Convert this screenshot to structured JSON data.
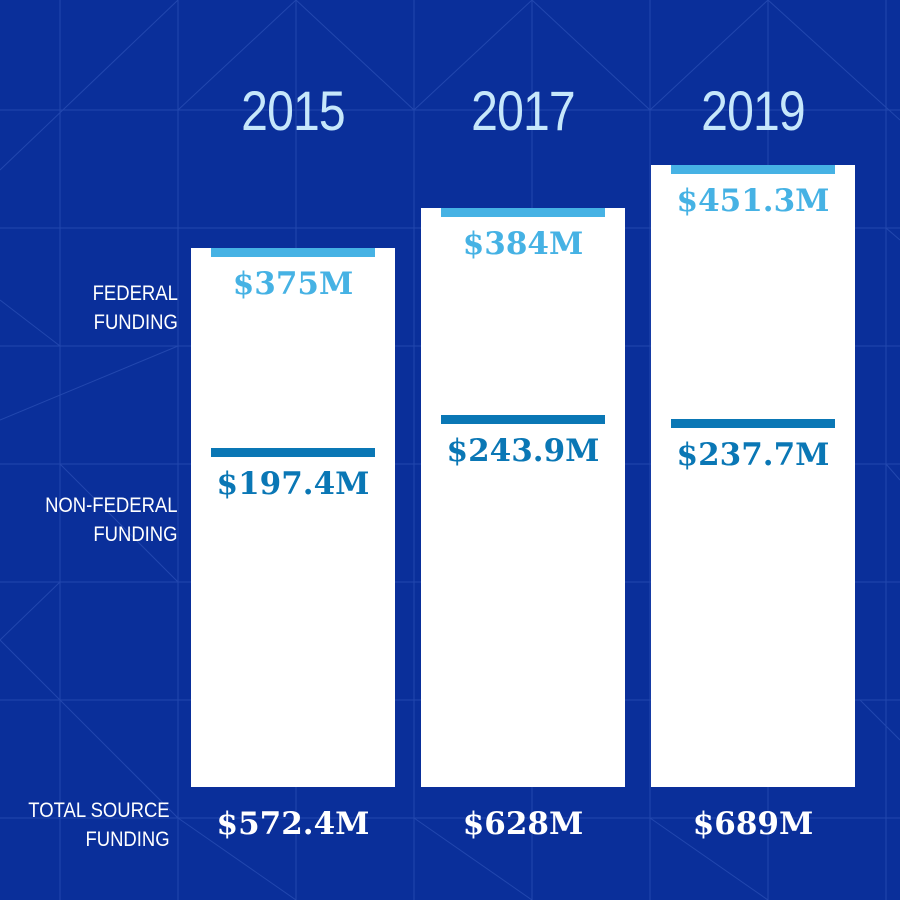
{
  "labels": {
    "federal": [
      "FEDERAL",
      "FUNDING"
    ],
    "non_federal": [
      "NON-FEDERAL",
      "FUNDING"
    ],
    "total": [
      "TOTAL SOURCE",
      "FUNDING"
    ]
  },
  "colors": {
    "background": "#0a2f9a",
    "federal": "#46b2e4",
    "non_federal": "#0a77b5",
    "year": "#c6e7fb",
    "column": "#ffffff"
  },
  "chart_data": {
    "type": "bar",
    "title": "",
    "categories": [
      "2015",
      "2017",
      "2019"
    ],
    "series": [
      {
        "name": "FEDERAL FUNDING",
        "values": [
          375,
          384,
          451.3
        ],
        "labels": [
          "$375M",
          "$384M",
          "$451.3M"
        ]
      },
      {
        "name": "NON-FEDERAL FUNDING",
        "values": [
          197.4,
          243.9,
          237.7
        ],
        "labels": [
          "$197.4M",
          "$243.9M",
          "$237.7M"
        ]
      }
    ],
    "totals": {
      "name": "TOTAL SOURCE FUNDING",
      "values": [
        572.4,
        628,
        689
      ],
      "labels": [
        "$572.4M",
        "$628M",
        "$689M"
      ]
    },
    "unit": "$M",
    "grid": false,
    "legend": "left"
  }
}
